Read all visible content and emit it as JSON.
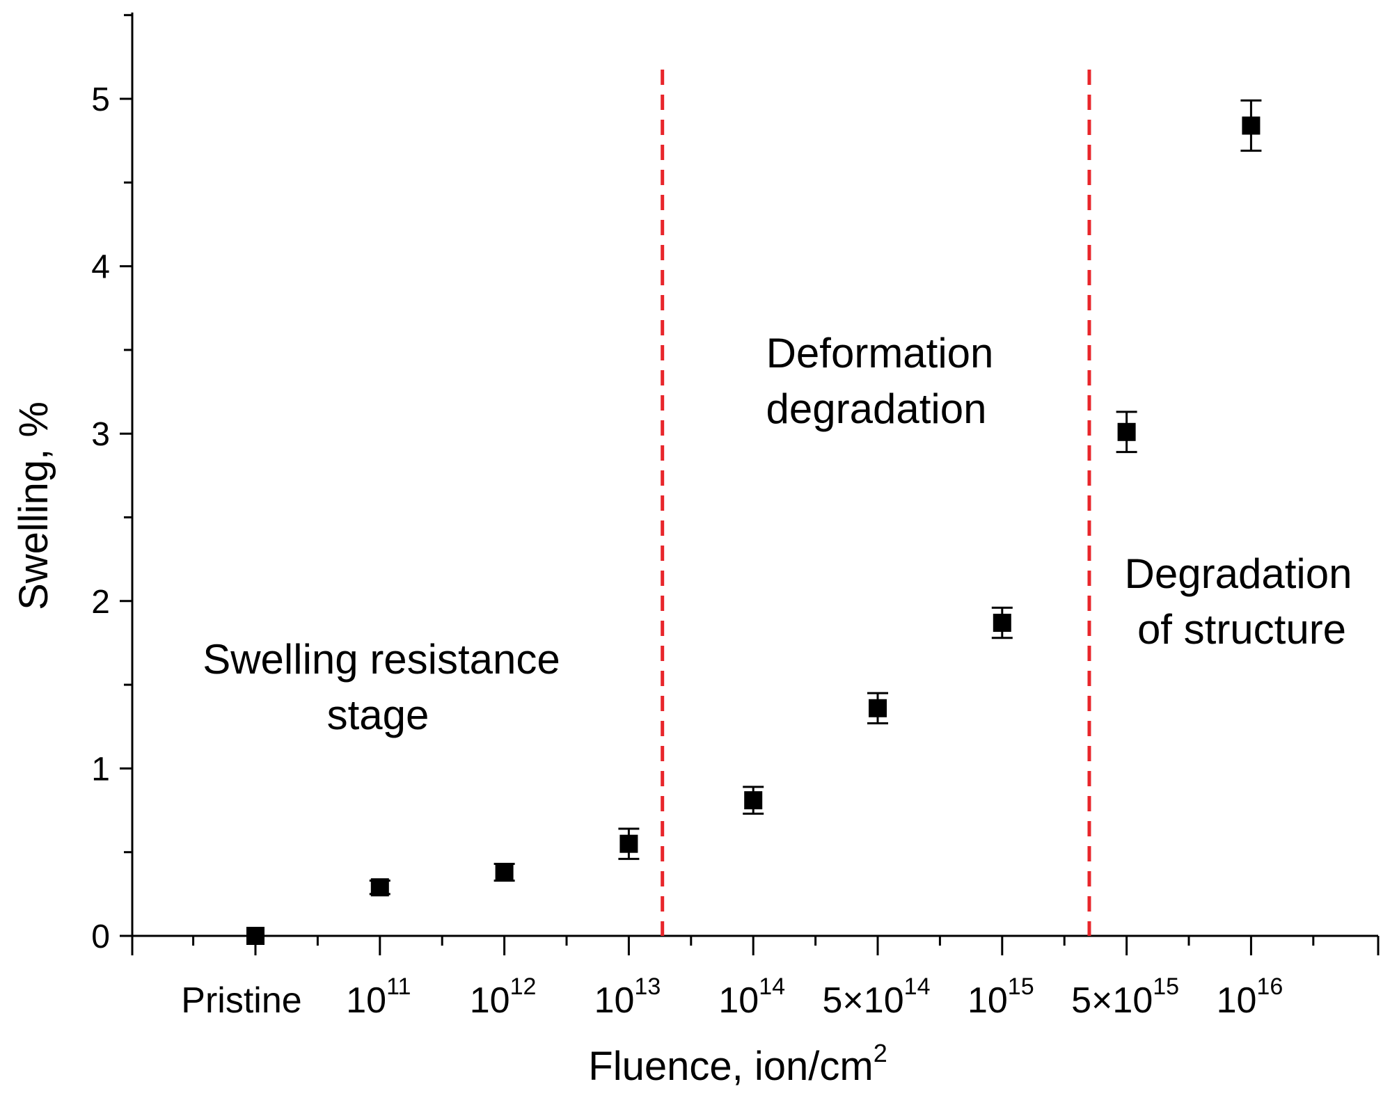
{
  "chart_data": {
    "type": "scatter",
    "title": "",
    "xlabel": "Fluence, ion/cm",
    "xlabel_sup": "2",
    "ylabel": "Swelling, %",
    "ylim": [
      0,
      5.5
    ],
    "yticks": [
      "0",
      "1",
      "2",
      "3",
      "4",
      "5"
    ],
    "categories": [
      {
        "base": "Pristine",
        "exp": ""
      },
      {
        "base": "10",
        "exp": "11"
      },
      {
        "base": "10",
        "exp": "12"
      },
      {
        "base": "10",
        "exp": "13"
      },
      {
        "base": "10",
        "exp": "14"
      },
      {
        "base": "5×10",
        "exp": "14"
      },
      {
        "base": "10",
        "exp": "15"
      },
      {
        "base": "5×10",
        "exp": "15"
      },
      {
        "base": "10",
        "exp": "16"
      }
    ],
    "series": [
      {
        "name": "Swelling",
        "values": [
          0.0,
          0.29,
          0.38,
          0.55,
          0.81,
          1.36,
          1.87,
          3.01,
          4.84
        ],
        "errors": [
          0.02,
          0.04,
          0.05,
          0.09,
          0.08,
          0.09,
          0.09,
          0.12,
          0.15
        ]
      }
    ],
    "stage_dividers": [
      3.27,
      6.7
    ],
    "stage_divider_color": "#e8262b",
    "annotations": [
      {
        "lines": [
          "Swelling resistance",
          "stage"
        ]
      },
      {
        "lines": [
          "Deformation",
          "degradation"
        ]
      },
      {
        "lines": [
          "Degradation",
          "of structure"
        ]
      }
    ]
  }
}
